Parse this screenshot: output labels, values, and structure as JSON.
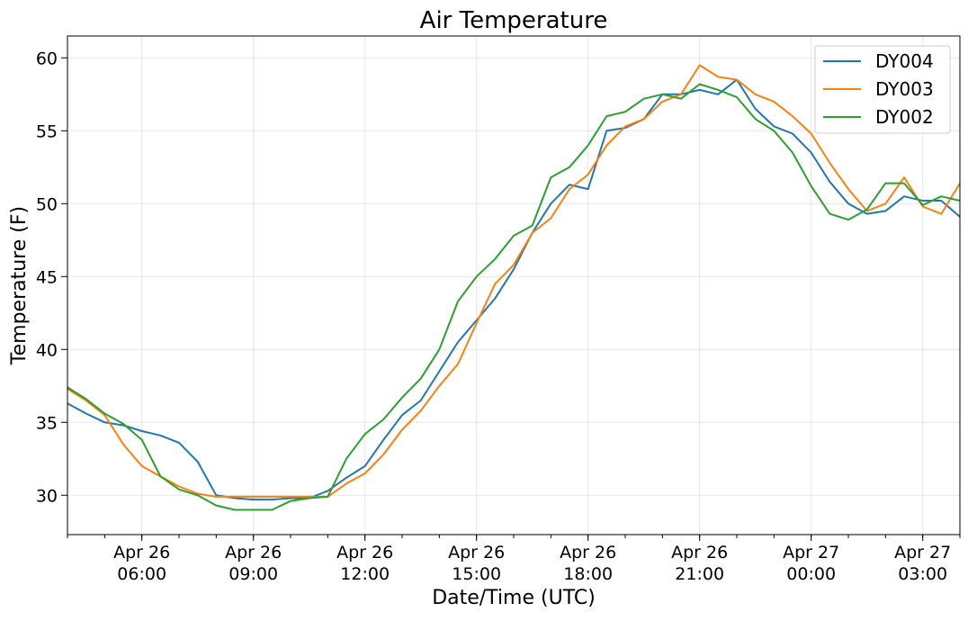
{
  "chart_data": {
    "type": "line",
    "title": "Air Temperature",
    "xlabel": "Date/Time (UTC)",
    "ylabel": "Temperature (F)",
    "x_unit": "hours since Apr 26 04:00 UTC",
    "xlim": [
      0,
      24
    ],
    "ylim": [
      27.3,
      61.5
    ],
    "grid": true,
    "legend_position": "top-right",
    "x_ticks": [
      {
        "value": 2,
        "line1": "Apr 26",
        "line2": "06:00"
      },
      {
        "value": 5,
        "line1": "Apr 26",
        "line2": "09:00"
      },
      {
        "value": 8,
        "line1": "Apr 26",
        "line2": "12:00"
      },
      {
        "value": 11,
        "line1": "Apr 26",
        "line2": "15:00"
      },
      {
        "value": 14,
        "line1": "Apr 26",
        "line2": "18:00"
      },
      {
        "value": 17,
        "line1": "Apr 26",
        "line2": "21:00"
      },
      {
        "value": 20,
        "line1": "Apr 27",
        "line2": "00:00"
      },
      {
        "value": 23,
        "line1": "Apr 27",
        "line2": "03:00"
      }
    ],
    "y_ticks": [
      "30",
      "35",
      "40",
      "45",
      "50",
      "55",
      "60"
    ],
    "x": [
      0,
      0.5,
      1,
      1.5,
      2,
      2.5,
      3,
      3.5,
      4,
      4.5,
      5,
      5.5,
      6,
      6.5,
      7,
      7.5,
      8,
      8.5,
      9,
      9.5,
      10,
      10.5,
      11,
      11.5,
      12,
      12.5,
      13,
      13.5,
      14,
      14.5,
      15,
      15.5,
      16,
      16.5,
      17,
      17.5,
      18,
      18.5,
      19,
      19.5,
      20,
      20.5,
      21,
      21.5,
      22,
      22.5,
      23,
      23.5,
      24
    ],
    "series": [
      {
        "name": "DY004",
        "color": "#1f77b4",
        "values": [
          36.3,
          35.6,
          35.0,
          34.8,
          34.4,
          34.1,
          33.6,
          32.3,
          30.0,
          29.8,
          29.7,
          29.7,
          29.8,
          29.8,
          30.3,
          31.2,
          32.0,
          33.8,
          35.5,
          36.5,
          38.5,
          40.5,
          42.0,
          43.5,
          45.5,
          48.0,
          50.0,
          51.3,
          51.0,
          55.0,
          55.2,
          55.8,
          57.5,
          57.5,
          57.8,
          57.5,
          58.5,
          56.5,
          55.3,
          54.8,
          53.5,
          51.5,
          50.0,
          49.3,
          49.5,
          50.5,
          50.2,
          50.2,
          49.1
        ]
      },
      {
        "name": "DY003",
        "color": "#ff7f0e",
        "values": [
          37.3,
          36.5,
          35.5,
          33.5,
          32.0,
          31.3,
          30.6,
          30.1,
          29.9,
          29.9,
          29.9,
          29.9,
          29.9,
          29.9,
          29.9,
          30.8,
          31.5,
          32.8,
          34.5,
          35.8,
          37.5,
          39.0,
          41.8,
          44.5,
          45.8,
          48.0,
          49.0,
          51.0,
          52.0,
          54.0,
          55.3,
          55.8,
          57.0,
          57.5,
          59.5,
          58.7,
          58.5,
          57.5,
          57.0,
          56.0,
          54.8,
          52.8,
          51.0,
          49.5,
          50.0,
          51.8,
          49.8,
          49.3,
          51.4
        ]
      },
      {
        "name": "DY002",
        "color": "#2ca02c",
        "values": [
          37.4,
          36.6,
          35.6,
          34.9,
          33.8,
          31.3,
          30.4,
          30.0,
          29.3,
          29.0,
          29.0,
          29.0,
          29.6,
          29.8,
          29.9,
          32.5,
          34.2,
          35.2,
          36.7,
          38.0,
          40.0,
          43.3,
          45.0,
          46.2,
          47.8,
          48.5,
          51.8,
          52.5,
          54.0,
          56.0,
          56.3,
          57.2,
          57.5,
          57.2,
          58.2,
          57.8,
          57.3,
          55.8,
          55.0,
          53.5,
          51.2,
          49.3,
          48.9,
          49.6,
          51.4,
          51.4,
          49.9,
          50.5,
          50.2
        ]
      }
    ]
  }
}
